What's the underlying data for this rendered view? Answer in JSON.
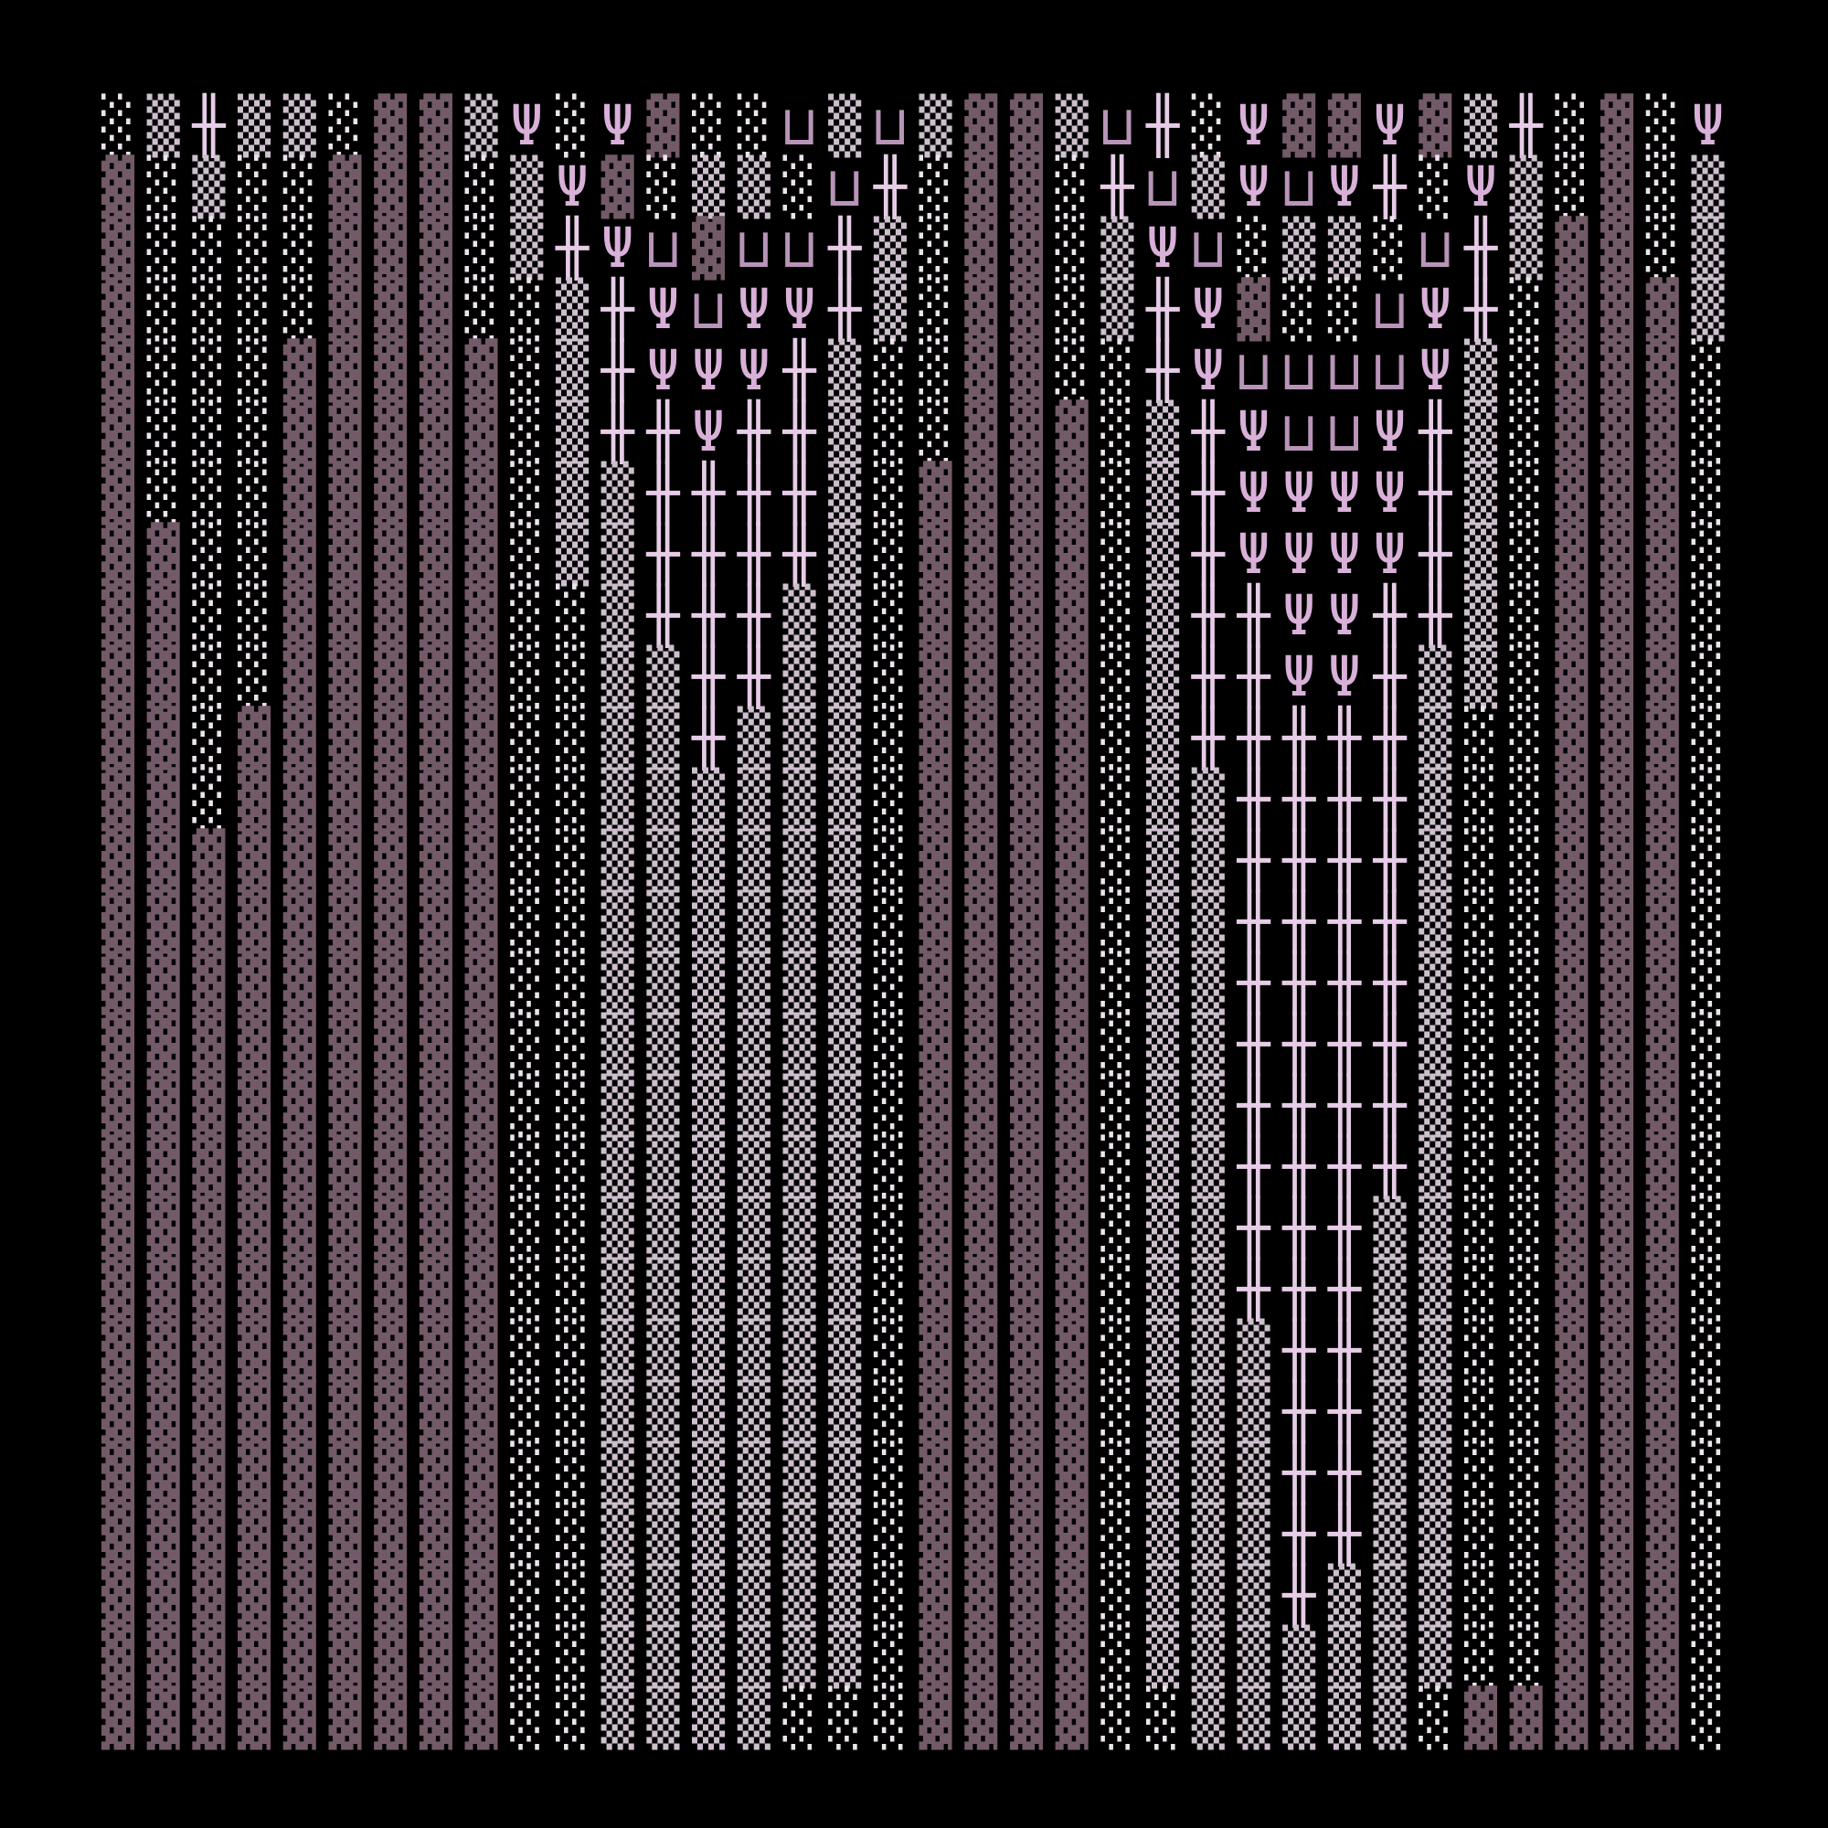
{
  "background": "#000000",
  "colors": {
    "▓": "#735a68",
    "▒": "#cdbfcd",
    "░": "#ece4ec",
    "╫": "#e6cce6",
    "Ψ": "#d8b0d8",
    "⊔": "#b894b8"
  },
  "rows": [
    "░▒╫▒▒░▓▓▒Ψ░Ψ▓░░⊔▒⊔▒▓▓▒⊔╫░Ψ▓▓Ψ▓▒╫░▓░Ψ",
    "▓░▒░░▓▓▓░▒Ψ▓░▒▒░⊔╫░▓▓░╫⊔▒Ψ⊔Ψ╫░Ψ▒░▓░▒",
    "▓░░░░▓▓▓░▒╫Ψ⊔▓⊔⊔╫▒░▓▓░▒Ψ⊔░▒▒░⊔╫▒▓▓░▒",
    "▓░░░░▓▓▓░░▒╫Ψ⊔ΨΨ╫▒░▓▓░▒╫Ψ▓░░⊔Ψ╫░▓▓▓▒",
    "▓░░░▓▓▓▓▓░▒╫ΨΨΨ╫▒░░▓▓░░╫Ψ⊔⊔⊔⊔Ψ▒░▓▓▓░",
    "▓░░░▓▓▓▓▓░▒╫╫Ψ╫╫▒░░▓▓▓░▒╫Ψ⊔⊔Ψ╫▒░▓▓▓░",
    "▓░░░▓▓▓▓▓░▒▒╫╫╫╫▒░▓▓▓▓░▒╫ΨΨΨΨ╫▒░▓▓▓░",
    "▓▓░░▓▓▓▓▓░▒▒╫╫╫╫▒░▓▓▓▓░▒╫ΨΨΨΨ╫▒░▓▓▓░",
    "▓▓░░▓▓▓▓▓░░▒╫╫╫▒▒░▓▓▓▓░▒╫╫ΨΨ╫╫▒░▓▓▓░",
    "▓▓░░▓▓▓▓▓░░▒▒╫╫▒▒░▓▓▓▓░▒╫╫ΨΨ╫▒▒░▓▓▓░",
    "▓▓░▓▓▓▓▓▓░░▒▒╫▒▒▒░▓▓▓▓░▒╫╫╫╫╫▒░░▓▓▓░",
    "▓▓░▓▓▓▓▓▓░░▒▒▒▒▒▒░▓▓▓▓░▒▒╫╫╫╫▒░░▓▓▓░",
    "▓▓▓▓▓▓▓▓▓░░▒▒▒▒▒▒░▓▓▓▓░▒▒╫╫╫╫▒░░▓▓▓░",
    "▓▓▓▓▓▓▓▓▓░░▒▒▒▒▒▒░▓▓▓▓░▒▒╫╫╫╫▒░░▓▓▓░",
    "▓▓▓▓▓▓▓▓▓░░▒▒▒▒▒▒░▓▓▓▓░▒▒╫╫╫╫▒░░▓▓▓░",
    "▓▓▓▓▓▓▓▓▓░░▒▒▒▒▒▒░▓▓▓▓░▒▒╫╫╫╫▒░░▓▓▓░",
    "▓▓▓▓▓▓▓▓▓░░▒▒▒▒▒▒░▓▓▓▓░▒▒╫╫╫╫▒░░▓▓▓░",
    "▓▓▓▓▓▓▓▓▓░░▒▒▒▒▒▒░▓▓▓▓░▒▒╫╫╫╫▒░░▓▓▓░",
    "▓▓▓▓▓▓▓▓▓░░▒▒▒▒▒▒░▓▓▓▓░▒▒╫╫╫▒▒░░▓▓▓░",
    "▓▓▓▓▓▓▓▓▓░░▒▒▒▒▒▒░▓▓▓▓░▒▒╫╫╫▒▒░░▓▓▓░",
    "▓▓▓▓▓▓▓▓▓░░▒▒▒▒▒▒░▓▓▓▓░▒▒▒╫╫▒▒░░▓▓▓░",
    "▓▓▓▓▓▓▓▓▓░░▒▒▒▒▒▒░▓▓▓▓░▒▒▒╫╫▒▒░░▓▓▓░",
    "▓▓▓▓▓▓▓▓▓░░▒▒▒▒▒▒░▓▓▓▓░▒▒▒╫╫▒▒░░▓▓▓░",
    "▓▓▓▓▓▓▓▓▓░░▒▒▒▒▒▒░▓▓▓▓░▒▒▒╫╫▒▒░░▓▓▓░",
    "▓▓▓▓▓▓▓▓▓░░▒▒▒▒▒▒░▓▓▓▓░▒▒▒╫▒▒▒░░▓▓▓░",
    "▓▓▓▓▓▓▓▓▓░░▒▒▒▒▒▒░▓▓▓▓░▒▒▒▒▒▒▒░░▓▓▓░",
    "▓▓▓▓▓▓▓▓▓░░▒▒▒▒░░░▓▓▓▓░░▒▒▒▒▒░▓▓▓▓▓░"
  ]
}
